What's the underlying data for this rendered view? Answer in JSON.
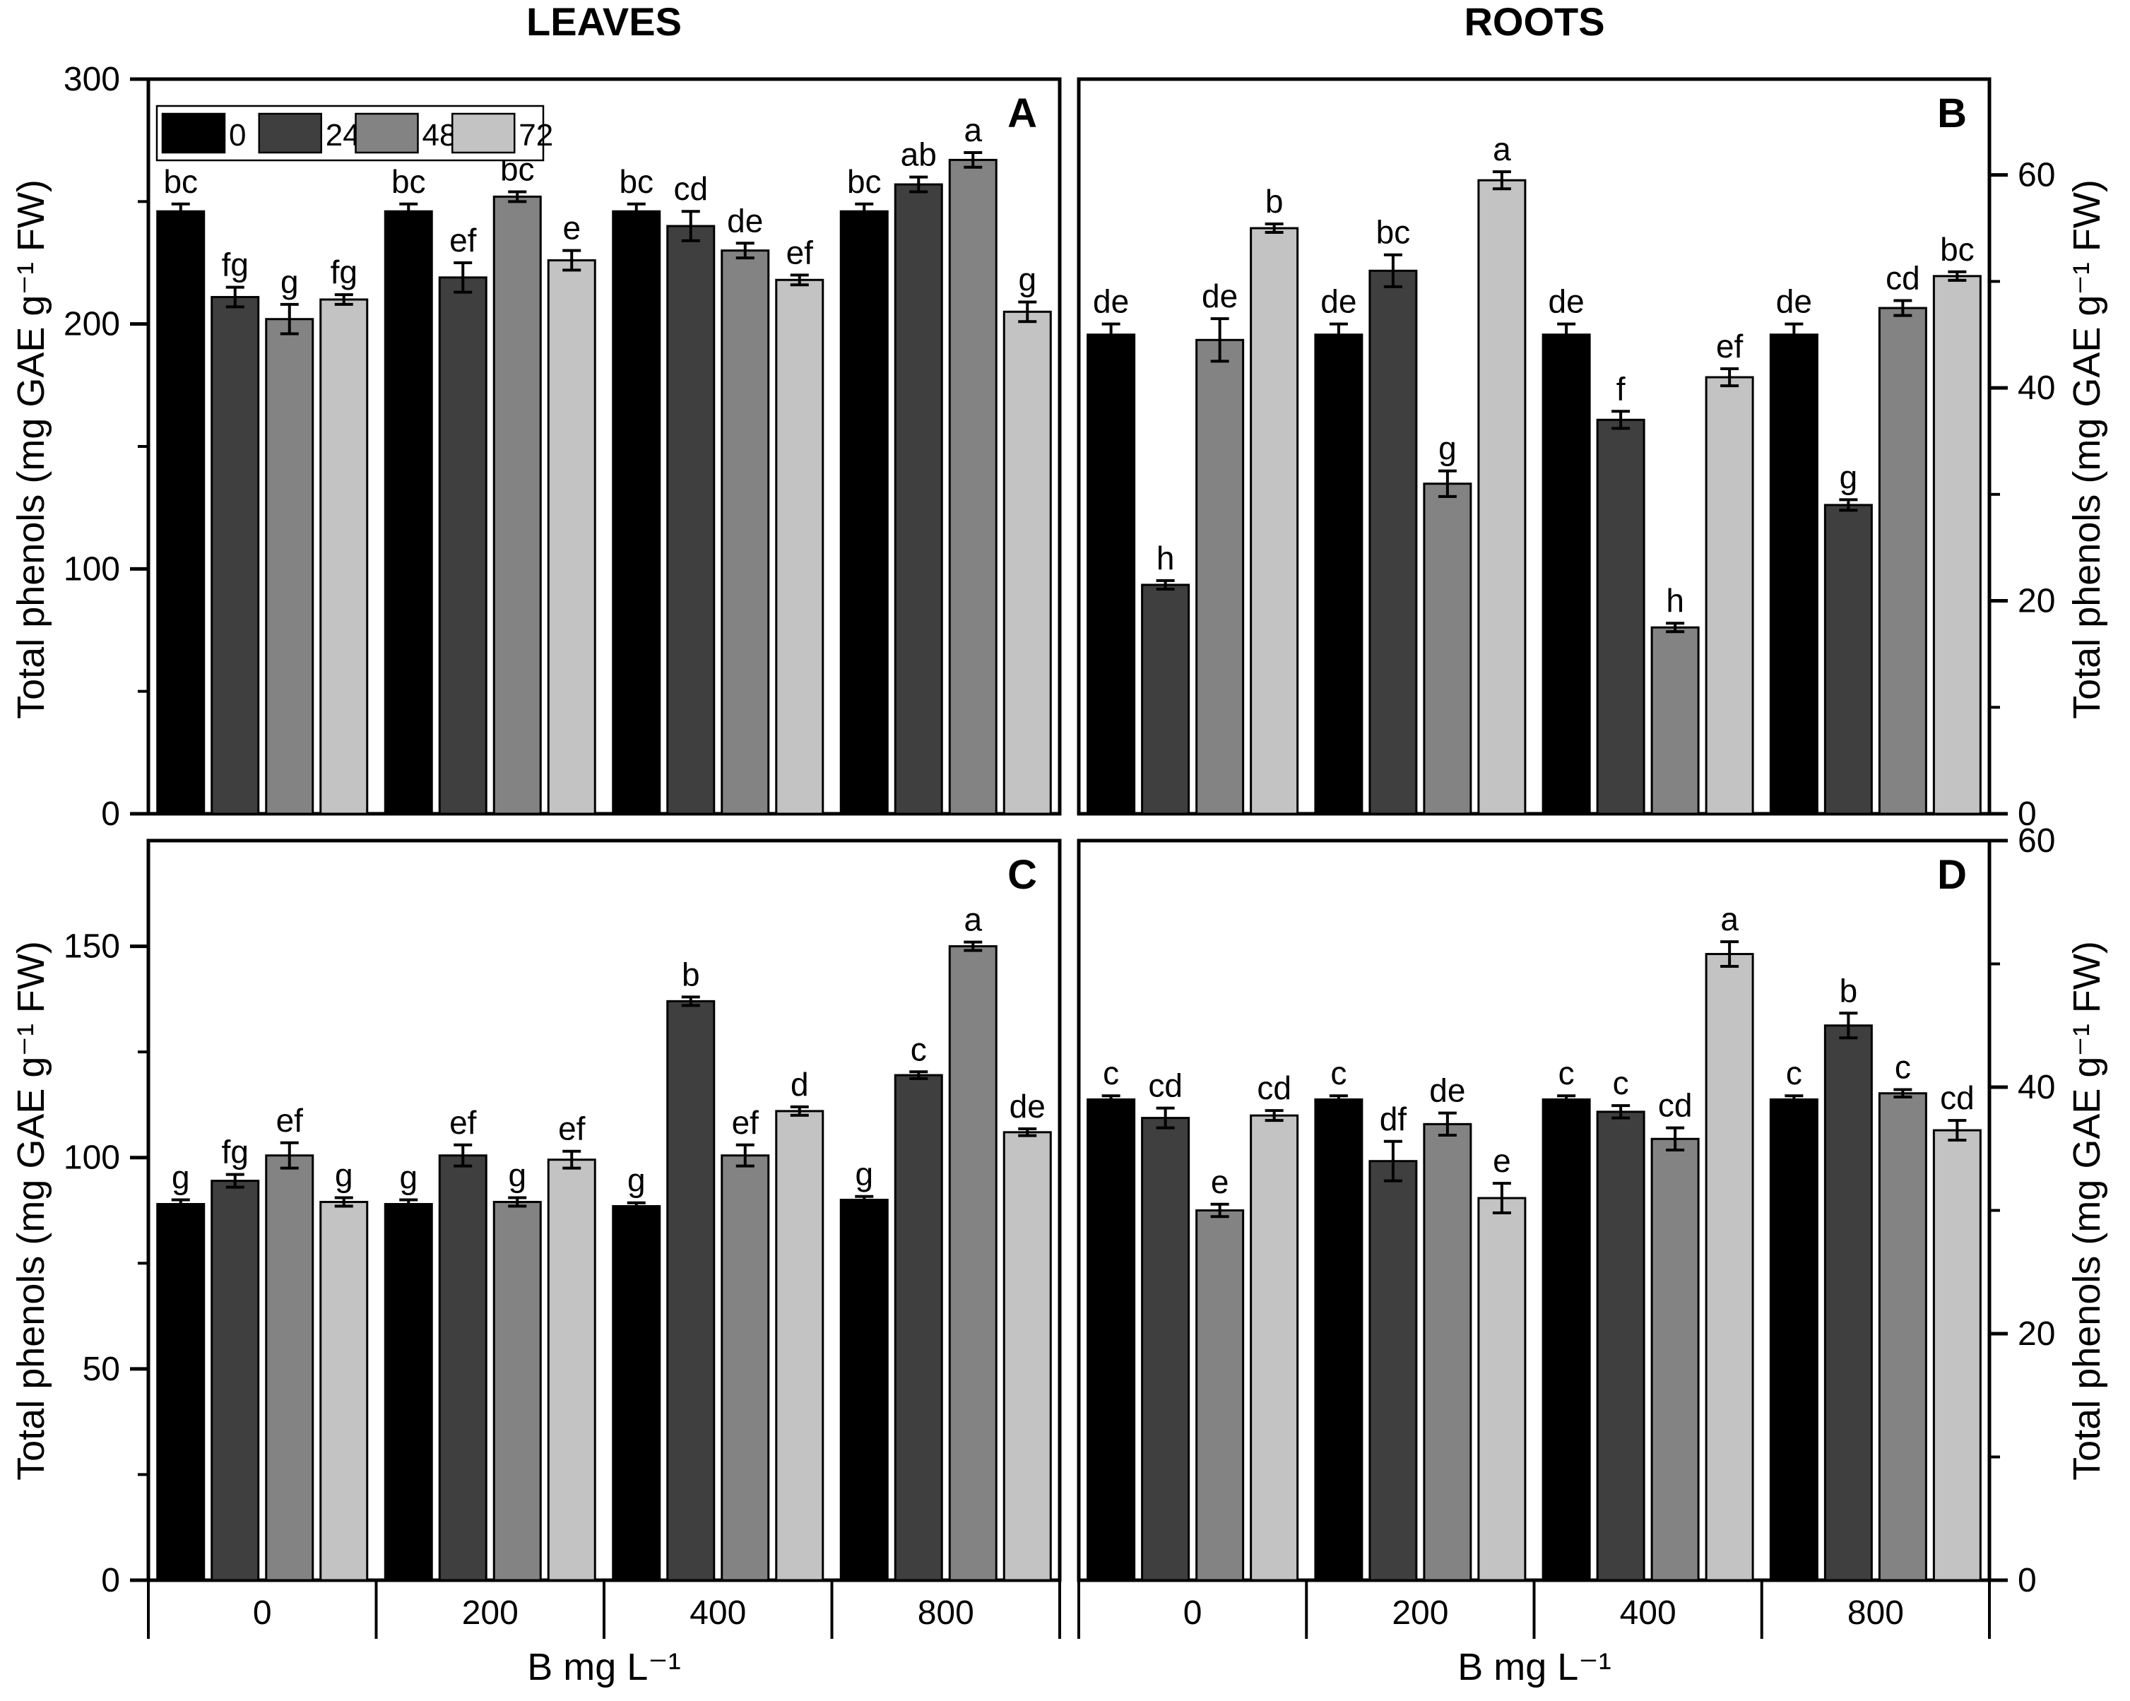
{
  "figure": {
    "column_titles": [
      "LEAVES",
      "ROOTS"
    ],
    "y_axis_label": "Total phenols (mg GAE g⁻¹ FW)",
    "x_axis_label": "B mg L⁻¹",
    "categories": [
      "0",
      "200",
      "400",
      "800"
    ],
    "legend": {
      "labels": [
        "0",
        "24",
        "48",
        "72"
      ],
      "colors": [
        "#000000",
        "#3f3f3f",
        "#838383",
        "#c3c3c3"
      ]
    },
    "bar_outline_color": "#000000",
    "background_color": "#ffffff"
  },
  "chart_data": [
    {
      "type": "bar",
      "id": "A",
      "panel_letter": "A",
      "organ": "LEAVES",
      "axis_side": "left",
      "ylim": [
        0,
        300
      ],
      "yticks": [
        0,
        100,
        200,
        300
      ],
      "minor_ticks": [
        50,
        150,
        250
      ],
      "series_labels": [
        "0",
        "24",
        "48",
        "72"
      ],
      "show_x_labels": false,
      "show_legend": true,
      "groups": [
        {
          "category": "0",
          "values": [
            246,
            211,
            202,
            210
          ],
          "errors": [
            3,
            4,
            6,
            2
          ],
          "letters": [
            "bc",
            "fg",
            "g",
            "fg"
          ]
        },
        {
          "category": "200",
          "values": [
            246,
            219,
            252,
            226
          ],
          "errors": [
            3,
            6,
            2,
            4
          ],
          "letters": [
            "bc",
            "ef",
            "bc",
            "e"
          ]
        },
        {
          "category": "400",
          "values": [
            246,
            240,
            230,
            218
          ],
          "errors": [
            3,
            6,
            3,
            2
          ],
          "letters": [
            "bc",
            "cd",
            "de",
            "ef"
          ]
        },
        {
          "category": "800",
          "values": [
            246,
            257,
            267,
            205
          ],
          "errors": [
            3,
            3,
            3,
            4
          ],
          "letters": [
            "bc",
            "ab",
            "a",
            "g"
          ]
        }
      ]
    },
    {
      "type": "bar",
      "id": "B",
      "panel_letter": "B",
      "organ": "ROOTS",
      "axis_side": "right",
      "ylim": [
        0,
        69
      ],
      "yticks": [
        0,
        20,
        40,
        60
      ],
      "minor_ticks": [
        10,
        30,
        50
      ],
      "series_labels": [
        "0",
        "24",
        "48",
        "72"
      ],
      "show_x_labels": false,
      "show_legend": false,
      "groups": [
        {
          "category": "0",
          "values": [
            45,
            21.5,
            44.5,
            55
          ],
          "errors": [
            1,
            0.4,
            2,
            0.4
          ],
          "letters": [
            "de",
            "h",
            "de",
            "b"
          ]
        },
        {
          "category": "200",
          "values": [
            45,
            51,
            31,
            59.5
          ],
          "errors": [
            1,
            1.5,
            1.2,
            0.8
          ],
          "letters": [
            "de",
            "bc",
            "g",
            "a"
          ]
        },
        {
          "category": "400",
          "values": [
            45,
            37,
            17.5,
            41
          ],
          "errors": [
            1,
            0.8,
            0.4,
            0.8
          ],
          "letters": [
            "de",
            "f",
            "h",
            "ef"
          ]
        },
        {
          "category": "800",
          "values": [
            45,
            29,
            47.5,
            50.5
          ],
          "errors": [
            1,
            0.5,
            0.7,
            0.4
          ],
          "letters": [
            "de",
            "g",
            "cd",
            "bc"
          ]
        }
      ]
    },
    {
      "type": "bar",
      "id": "C",
      "panel_letter": "C",
      "organ": "LEAVES",
      "axis_side": "left",
      "ylim": [
        0,
        175
      ],
      "yticks": [
        0,
        50,
        100,
        150
      ],
      "minor_ticks": [
        25,
        75,
        125
      ],
      "series_labels": [
        "0",
        "24",
        "48",
        "72"
      ],
      "show_x_labels": true,
      "show_legend": false,
      "groups": [
        {
          "category": "0",
          "values": [
            89,
            94.5,
            100.5,
            89.5
          ],
          "errors": [
            1,
            1.5,
            3,
            1
          ],
          "letters": [
            "g",
            "fg",
            "ef",
            "g"
          ]
        },
        {
          "category": "200",
          "values": [
            89,
            100.5,
            89.5,
            99.5
          ],
          "errors": [
            1,
            2.5,
            1,
            2
          ],
          "letters": [
            "g",
            "ef",
            "g",
            "ef"
          ]
        },
        {
          "category": "400",
          "values": [
            88.5,
            137,
            100.5,
            111
          ],
          "errors": [
            0.8,
            1,
            2.5,
            1
          ],
          "letters": [
            "g",
            "b",
            "ef",
            "d"
          ]
        },
        {
          "category": "800",
          "values": [
            90,
            119.5,
            150,
            106
          ],
          "errors": [
            0.8,
            0.8,
            1,
            0.8
          ],
          "letters": [
            "g",
            "c",
            "a",
            "de"
          ]
        }
      ]
    },
    {
      "type": "bar",
      "id": "D",
      "panel_letter": "D",
      "organ": "ROOTS",
      "axis_side": "right",
      "ylim": [
        0,
        60
      ],
      "yticks": [
        0,
        20,
        40,
        60
      ],
      "minor_ticks": [
        10,
        30,
        50
      ],
      "series_labels": [
        "0",
        "24",
        "48",
        "72"
      ],
      "show_x_labels": true,
      "show_legend": false,
      "groups": [
        {
          "category": "0",
          "values": [
            39,
            37.5,
            30,
            37.7
          ],
          "errors": [
            0.3,
            0.8,
            0.5,
            0.4
          ],
          "letters": [
            "c",
            "cd",
            "e",
            "cd"
          ]
        },
        {
          "category": "200",
          "values": [
            39,
            34,
            37,
            31
          ],
          "errors": [
            0.3,
            1.6,
            0.9,
            1.2
          ],
          "letters": [
            "c",
            "df",
            "de",
            "e"
          ]
        },
        {
          "category": "400",
          "values": [
            39,
            38,
            35.8,
            50.8
          ],
          "errors": [
            0.3,
            0.5,
            0.9,
            1
          ],
          "letters": [
            "c",
            "c",
            "cd",
            "a"
          ]
        },
        {
          "category": "800",
          "values": [
            39,
            45,
            39.5,
            36.5
          ],
          "errors": [
            0.3,
            1,
            0.3,
            0.8
          ],
          "letters": [
            "c",
            "b",
            "c",
            "cd"
          ]
        }
      ]
    }
  ]
}
